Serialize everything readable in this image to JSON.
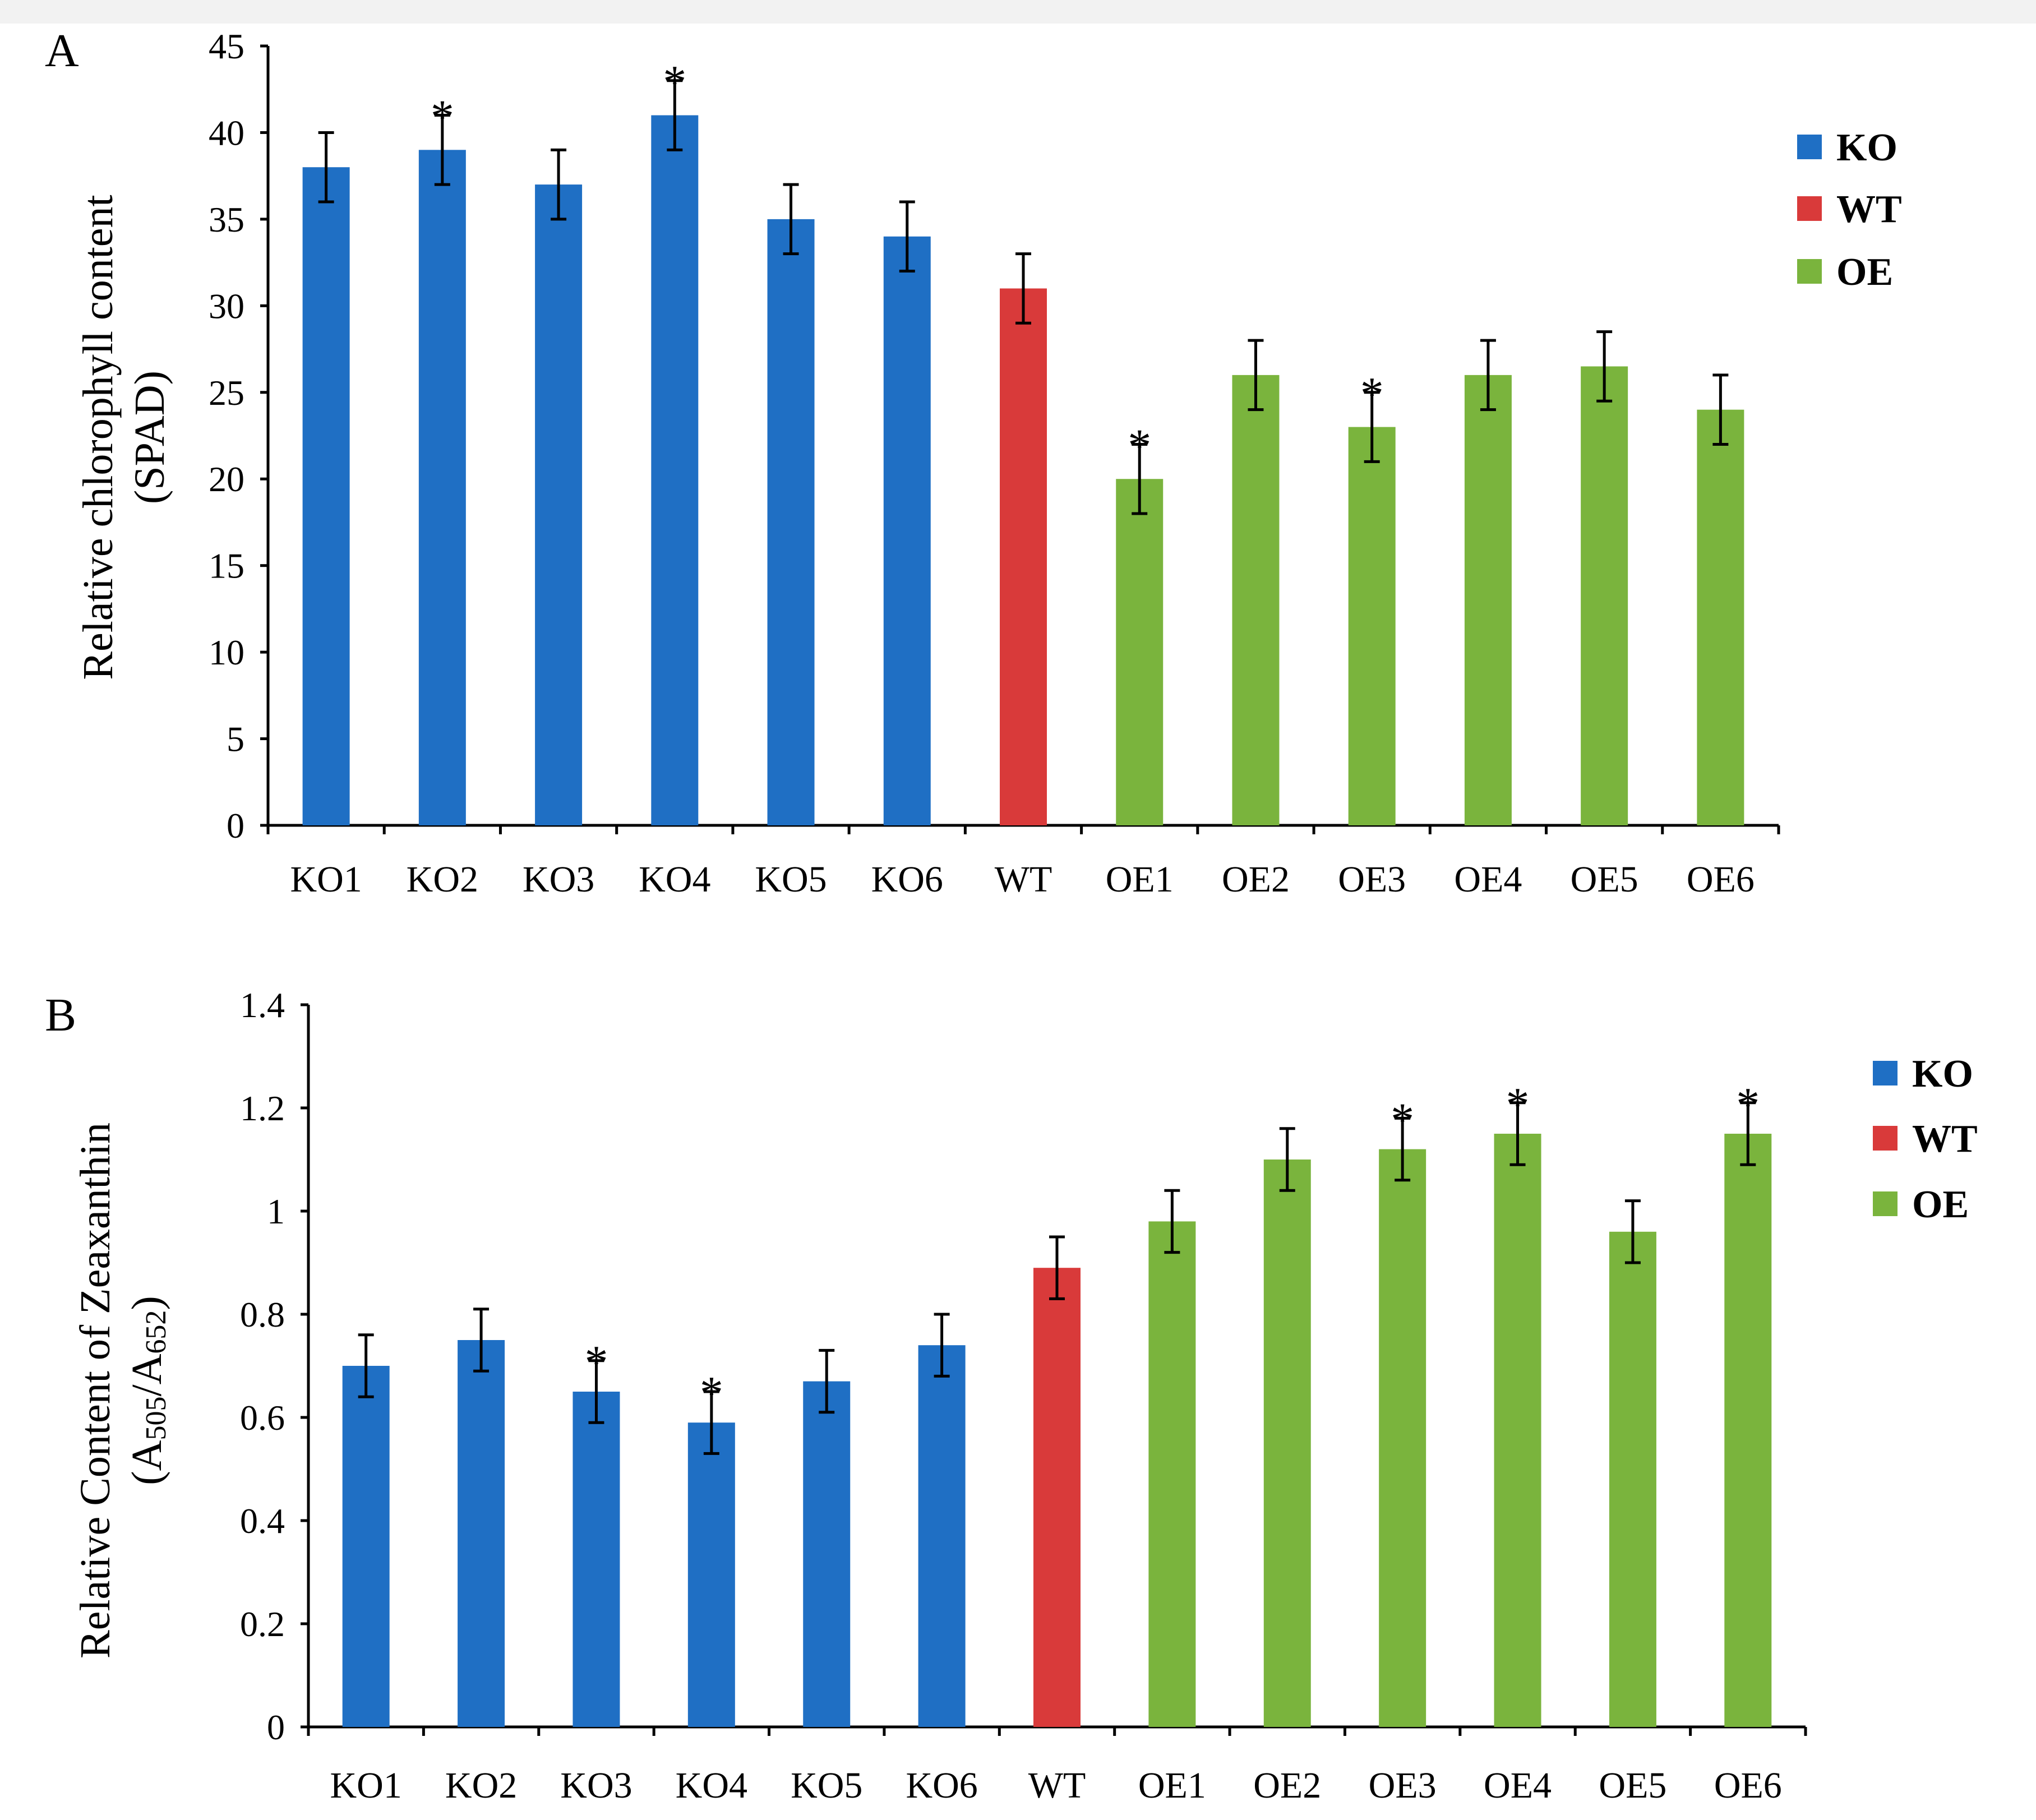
{
  "colors": {
    "KO": "#1f6fc4",
    "WT": "#d93a3a",
    "OE": "#7ab43d"
  },
  "chart_data": [
    {
      "panel": "A",
      "type": "bar",
      "ylabel_line1": "Relative chlorophyll content",
      "ylabel_line2": "(SPAD)",
      "ylim": [
        0,
        45
      ],
      "yticks": [
        "0",
        "5",
        "10",
        "15",
        "20",
        "25",
        "30",
        "35",
        "40",
        "45"
      ],
      "categories": [
        "KO1",
        "KO2",
        "KO3",
        "KO4",
        "KO5",
        "KO6",
        "WT",
        "OE1",
        "OE2",
        "OE3",
        "OE4",
        "OE5",
        "OE6"
      ],
      "groups": [
        "KO",
        "KO",
        "KO",
        "KO",
        "KO",
        "KO",
        "WT",
        "OE",
        "OE",
        "OE",
        "OE",
        "OE",
        "OE"
      ],
      "values": [
        38,
        39,
        37,
        41,
        35,
        34,
        31,
        20,
        26,
        23,
        26,
        26.5,
        24
      ],
      "errors": [
        2,
        2,
        2,
        2,
        2,
        2,
        2,
        2,
        2,
        2,
        2,
        2,
        2
      ],
      "significant": [
        false,
        true,
        false,
        true,
        false,
        false,
        false,
        true,
        false,
        true,
        false,
        false,
        false
      ],
      "star_label": "*",
      "legend": [
        "KO",
        "WT",
        "OE"
      ]
    },
    {
      "panel": "B",
      "type": "bar",
      "ylabel_line1": "Relative Content of Zeaxanthin",
      "ylabel_line2": {
        "a1": "(A",
        "s1": "505",
        "a2": "/A",
        "s2": "652",
        "a3": ")"
      },
      "ylim": [
        0,
        1.4
      ],
      "yticks": [
        "0",
        "0.2",
        "0.4",
        "0.6",
        "0.8",
        "1",
        "1.2",
        "1.4"
      ],
      "categories": [
        "KO1",
        "KO2",
        "KO3",
        "KO4",
        "KO5",
        "KO6",
        "WT",
        "OE1",
        "OE2",
        "OE3",
        "OE4",
        "OE5",
        "OE6"
      ],
      "groups": [
        "KO",
        "KO",
        "KO",
        "KO",
        "KO",
        "KO",
        "WT",
        "OE",
        "OE",
        "OE",
        "OE",
        "OE",
        "OE"
      ],
      "values": [
        0.7,
        0.75,
        0.65,
        0.59,
        0.67,
        0.74,
        0.89,
        0.98,
        1.1,
        1.12,
        1.15,
        0.96,
        1.15
      ],
      "errors": [
        0.06,
        0.06,
        0.06,
        0.06,
        0.06,
        0.06,
        0.06,
        0.06,
        0.06,
        0.06,
        0.06,
        0.06,
        0.06
      ],
      "significant": [
        false,
        false,
        true,
        true,
        false,
        false,
        false,
        false,
        false,
        true,
        true,
        false,
        true
      ],
      "star_label": "*",
      "legend": [
        "KO",
        "WT",
        "OE"
      ]
    }
  ]
}
